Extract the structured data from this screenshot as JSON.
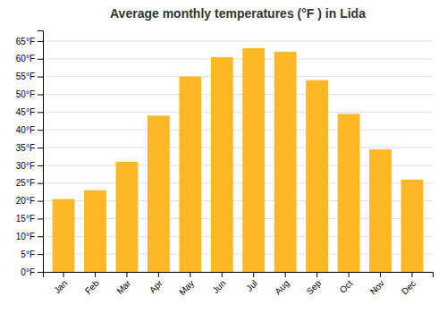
{
  "chart_data": {
    "type": "bar",
    "title": "Average monthly temperatures (°F ) in Lida",
    "categories": [
      "Jan",
      "Feb",
      "Mar",
      "Apr",
      "May",
      "Jun",
      "Jul",
      "Aug",
      "Sep",
      "Oct",
      "Nov",
      "Dec"
    ],
    "values": [
      20.5,
      23.0,
      31.0,
      44.0,
      55.0,
      60.5,
      63.0,
      62.0,
      54.0,
      44.5,
      34.5,
      26.0
    ],
    "color": "#FDB827",
    "ylim": [
      0,
      68
    ],
    "yticks": [
      {
        "value": 0,
        "label": "0°F"
      },
      {
        "value": 5,
        "label": "5°F"
      },
      {
        "value": 10,
        "label": "10°F"
      },
      {
        "value": 15,
        "label": "15°F"
      },
      {
        "value": 20,
        "label": "20°F"
      },
      {
        "value": 25,
        "label": "25°F"
      },
      {
        "value": 30,
        "label": "30°F"
      },
      {
        "value": 35,
        "label": "35°F"
      },
      {
        "value": 40,
        "label": "40°F"
      },
      {
        "value": 45,
        "label": "45°F"
      },
      {
        "value": 50,
        "label": "50°F"
      },
      {
        "value": 55,
        "label": "55°F"
      },
      {
        "value": 60,
        "label": "60°F"
      },
      {
        "value": 65,
        "label": "65°F"
      }
    ],
    "grid": true
  }
}
